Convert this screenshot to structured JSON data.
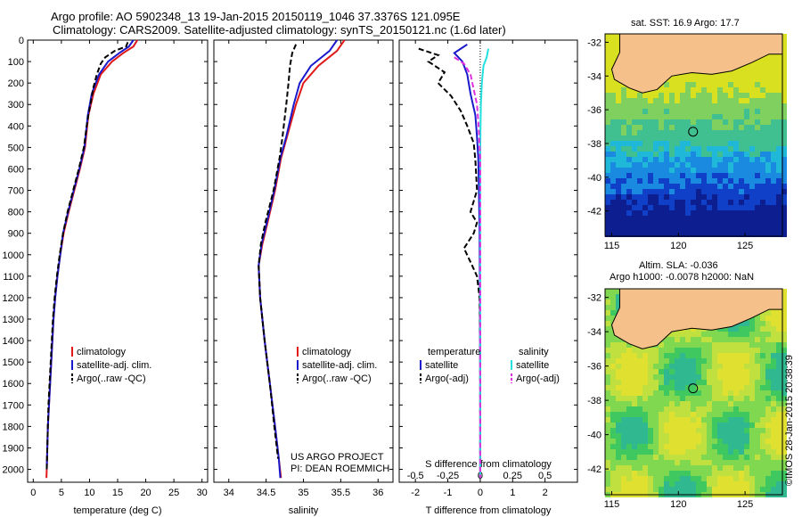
{
  "header": {
    "line1": "Argo profile: AO 5902348_13 19-Jan-2015 20150119_1046 37.3376S 121.095E",
    "line2": "Climatology: CARS2009. Satellite-adjusted climatology: synTS_20150121.nc (1.6d later)"
  },
  "colors": {
    "climatology": "#e01818",
    "satellite": "#1a1acc",
    "argo": "#000000",
    "sal_satellite": "#22e0e0",
    "sal_argo": "#e030e0",
    "land": "#f5c08a"
  },
  "chart_data": [
    {
      "type": "line",
      "panel": "temperature",
      "xlabel": "temperature (deg C)",
      "xlim": [
        -1,
        31
      ],
      "xticks": [
        "0",
        "5",
        "10",
        "15",
        "20",
        "25",
        "30"
      ],
      "ylim": [
        2060,
        0
      ],
      "yticks": [
        "0",
        "100",
        "200",
        "300",
        "400",
        "500",
        "600",
        "700",
        "800",
        "900",
        "1000",
        "1100",
        "1200",
        "1300",
        "1400",
        "1500",
        "1600",
        "1700",
        "1800",
        "1900",
        "2000"
      ],
      "legend": [
        "climatology",
        "satellite-adj. clim.",
        "Argo(..raw -QC)"
      ],
      "series": [
        {
          "name": "climatology",
          "color": "#e01818",
          "dash": "",
          "points": [
            [
              18.5,
              0
            ],
            [
              17.8,
              30
            ],
            [
              16,
              60
            ],
            [
              14,
              100
            ],
            [
              12,
              160
            ],
            [
              10.7,
              250
            ],
            [
              9.8,
              350
            ],
            [
              9.6,
              400
            ],
            [
              9.2,
              500
            ],
            [
              8.3,
              600
            ],
            [
              7.3,
              700
            ],
            [
              6.3,
              800
            ],
            [
              5.4,
              900
            ],
            [
              4.8,
              1000
            ],
            [
              4.3,
              1100
            ],
            [
              3.9,
              1200
            ],
            [
              3.6,
              1300
            ],
            [
              3.4,
              1400
            ],
            [
              3.2,
              1500
            ],
            [
              3,
              1600
            ],
            [
              2.8,
              1700
            ],
            [
              2.6,
              1800
            ],
            [
              2.5,
              1900
            ],
            [
              2.4,
              2000
            ],
            [
              2.35,
              2040
            ]
          ]
        },
        {
          "name": "satellite-adj. clim.",
          "color": "#1a1acc",
          "dash": "",
          "points": [
            [
              17.8,
              0
            ],
            [
              17,
              30
            ],
            [
              15.3,
              60
            ],
            [
              13.3,
              100
            ],
            [
              11.7,
              160
            ],
            [
              10.4,
              250
            ],
            [
              9.7,
              350
            ],
            [
              9.5,
              400
            ],
            [
              9.1,
              500
            ],
            [
              8.2,
              600
            ],
            [
              7.2,
              700
            ],
            [
              6.2,
              800
            ],
            [
              5.3,
              900
            ],
            [
              4.8,
              1000
            ],
            [
              4.3,
              1100
            ],
            [
              3.9,
              1200
            ],
            [
              3.6,
              1300
            ],
            [
              3.4,
              1400
            ],
            [
              3.2,
              1500
            ],
            [
              3,
              1600
            ],
            [
              2.8,
              1700
            ],
            [
              2.6,
              1800
            ],
            [
              2.5,
              1900
            ],
            [
              2.4,
              2000
            ]
          ]
        },
        {
          "name": "Argo(..raw -QC)",
          "color": "#000000",
          "dash": "6,3",
          "points": [
            [
              16.8,
              10
            ],
            [
              16.5,
              30
            ],
            [
              14.5,
              50
            ],
            [
              12.8,
              80
            ],
            [
              12,
              110
            ],
            [
              11.3,
              160
            ],
            [
              10.7,
              220
            ],
            [
              10.3,
              280
            ],
            [
              9.8,
              350
            ],
            [
              9.5,
              400
            ],
            [
              9,
              500
            ],
            [
              8.1,
              600
            ],
            [
              7.1,
              700
            ],
            [
              6.1,
              800
            ],
            [
              5.3,
              900
            ],
            [
              4.7,
              1000
            ],
            [
              4.2,
              1100
            ],
            [
              3.8,
              1200
            ],
            [
              3.5,
              1300
            ],
            [
              3.3,
              1400
            ],
            [
              3.1,
              1500
            ],
            [
              2.9,
              1600
            ],
            [
              2.7,
              1700
            ],
            [
              2.6,
              1800
            ],
            [
              2.5,
              1900
            ],
            [
              2.4,
              2000
            ]
          ]
        }
      ]
    },
    {
      "type": "line",
      "panel": "salinity",
      "xlabel": "salinity",
      "xlim": [
        33.8,
        36.2
      ],
      "xticks": [
        "34",
        "34.5",
        "35",
        "35.5",
        "36"
      ],
      "ylim": [
        2060,
        0
      ],
      "legend": [
        "climatology",
        "satellite-adj. clim.",
        "Argo(..raw -QC)"
      ],
      "series": [
        {
          "name": "climatology",
          "color": "#e01818",
          "dash": "",
          "points": [
            [
              35.55,
              0
            ],
            [
              35.45,
              50
            ],
            [
              35.2,
              120
            ],
            [
              35.0,
              200
            ],
            [
              34.9,
              300
            ],
            [
              34.78,
              450
            ],
            [
              34.7,
              550
            ],
            [
              34.62,
              700
            ],
            [
              34.52,
              850
            ],
            [
              34.45,
              950
            ],
            [
              34.4,
              1050
            ],
            [
              34.42,
              1200
            ],
            [
              34.48,
              1400
            ],
            [
              34.55,
              1600
            ],
            [
              34.62,
              1800
            ],
            [
              34.67,
              1950
            ],
            [
              34.7,
              2040
            ]
          ]
        },
        {
          "name": "satellite-adj. clim.",
          "color": "#1a1acc",
          "dash": "",
          "points": [
            [
              35.45,
              0
            ],
            [
              35.35,
              50
            ],
            [
              35.1,
              120
            ],
            [
              34.95,
              200
            ],
            [
              34.87,
              300
            ],
            [
              34.77,
              450
            ],
            [
              34.69,
              550
            ],
            [
              34.61,
              700
            ],
            [
              34.51,
              850
            ],
            [
              34.44,
              950
            ],
            [
              34.4,
              1050
            ],
            [
              34.42,
              1200
            ],
            [
              34.48,
              1400
            ],
            [
              34.55,
              1600
            ],
            [
              34.62,
              1800
            ],
            [
              34.67,
              1950
            ],
            [
              34.69,
              2040
            ]
          ]
        },
        {
          "name": "Argo(..raw -QC)",
          "color": "#000000",
          "dash": "6,3",
          "points": [
            [
              34.9,
              20
            ],
            [
              34.85,
              60
            ],
            [
              34.82,
              120
            ],
            [
              34.8,
              200
            ],
            [
              34.77,
              300
            ],
            [
              34.72,
              450
            ],
            [
              34.68,
              550
            ],
            [
              34.6,
              700
            ],
            [
              34.49,
              850
            ],
            [
              34.43,
              950
            ],
            [
              34.4,
              1050
            ],
            [
              34.42,
              1200
            ],
            [
              34.48,
              1400
            ],
            [
              34.55,
              1600
            ],
            [
              34.61,
              1800
            ],
            [
              34.66,
              1950
            ]
          ]
        }
      ],
      "annotations": [
        "US ARGO PROJECT",
        "PI: DEAN ROEMMICH"
      ]
    },
    {
      "type": "line",
      "panel": "difference",
      "xlabel": "T difference from climatology",
      "top_axis_label": "S difference from climatology",
      "top_ticks": [
        "-0.5",
        "-0.25",
        "0",
        "0.25",
        "0.5"
      ],
      "bottom_ticks": [
        "-2",
        "-1",
        "0",
        "1",
        "2"
      ],
      "xlim": [
        -2.5,
        3
      ],
      "ylim": [
        2060,
        0
      ],
      "legend_titles": [
        "temperature",
        "salinity"
      ],
      "legend": [
        "satellite",
        "Argo(-adj)",
        "satellite",
        "Argo(-adj)"
      ],
      "series": [
        {
          "name": "satellite",
          "color": "#1a1acc",
          "dash": "",
          "points": [
            [
              -0.4,
              20
            ],
            [
              -0.6,
              40
            ],
            [
              -0.8,
              60
            ],
            [
              -0.55,
              100
            ],
            [
              -0.4,
              160
            ],
            [
              -0.3,
              250
            ],
            [
              -0.15,
              350
            ],
            [
              -0.1,
              450
            ],
            [
              -0.06,
              550
            ],
            [
              -0.04,
              700
            ],
            [
              -0.02,
              900
            ],
            [
              -0.01,
              1200
            ],
            [
              0,
              1600
            ],
            [
              0,
              2040
            ]
          ]
        },
        {
          "name": "Argo(-adj)",
          "color": "#000000",
          "dash": "6,3",
          "points": [
            [
              -1.9,
              40
            ],
            [
              -1.3,
              70
            ],
            [
              -1.6,
              100
            ],
            [
              -1.1,
              150
            ],
            [
              -1.3,
              200
            ],
            [
              -0.9,
              260
            ],
            [
              -0.6,
              330
            ],
            [
              -0.4,
              400
            ],
            [
              -0.2,
              480
            ],
            [
              -0.15,
              560
            ],
            [
              -0.1,
              700
            ],
            [
              -0.3,
              800
            ],
            [
              -0.1,
              850
            ],
            [
              -0.2,
              900
            ],
            [
              -0.5,
              970
            ],
            [
              -0.25,
              1050
            ],
            [
              -0.1,
              1100
            ],
            [
              -0.02,
              1200
            ],
            [
              0,
              1400
            ],
            [
              0,
              2040
            ]
          ]
        },
        {
          "name": "salinity satellite",
          "color": "#22e0e0",
          "dash": "",
          "points": [
            [
              0.25,
              40
            ],
            [
              0.2,
              80
            ],
            [
              0.1,
              120
            ],
            [
              0.05,
              200
            ],
            [
              0.02,
              300
            ],
            [
              0,
              500
            ],
            [
              0,
              1000
            ],
            [
              0,
              2040
            ]
          ]
        },
        {
          "name": "salinity Argo(-adj)",
          "color": "#e030e0",
          "dash": "6,3",
          "points": [
            [
              -0.8,
              80
            ],
            [
              -0.5,
              110
            ],
            [
              -0.3,
              160
            ],
            [
              -0.2,
              230
            ],
            [
              -0.1,
              300
            ],
            [
              -0.05,
              400
            ],
            [
              0,
              550
            ],
            [
              0,
              1000
            ],
            [
              0,
              2040
            ]
          ]
        }
      ]
    }
  ],
  "maps": [
    {
      "title": "sat. SST: 16.9 Argo: 17.7",
      "xticks": [
        "115",
        "120",
        "125"
      ],
      "yticks": [
        "-32",
        "-34",
        "-36",
        "-38",
        "-40",
        "-42"
      ],
      "lon_range": [
        114.5,
        127.8
      ],
      "lat_range": [
        -43.5,
        -31.5
      ],
      "marker": {
        "lon": 121.1,
        "lat": -37.3
      }
    },
    {
      "title1": "Altim. SLA: -0.036",
      "title2": "Argo h1000: -0.0078 h2000: NaN",
      "xticks": [
        "115",
        "120",
        "125"
      ],
      "yticks": [
        "-32",
        "-34",
        "-36",
        "-38",
        "-40",
        "-42"
      ],
      "lon_range": [
        114.5,
        127.8
      ],
      "lat_range": [
        -43.5,
        -31.5
      ],
      "marker": {
        "lon": 121.1,
        "lat": -37.3
      }
    }
  ],
  "credit": "©IMOS 28-Jan-2015 20:38:39"
}
